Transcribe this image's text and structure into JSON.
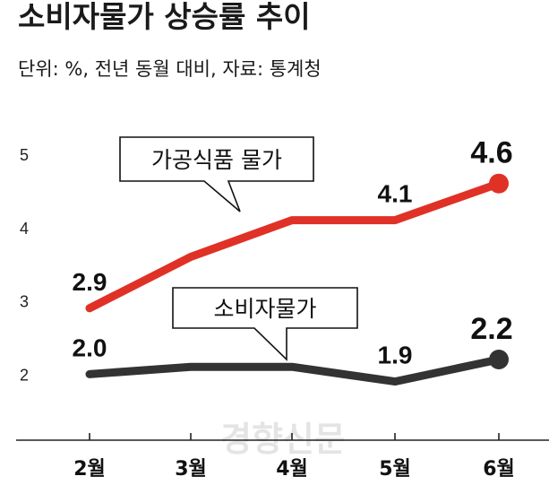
{
  "chart_data": {
    "type": "line",
    "title": "소비자물가 상승률 추이",
    "subtitle": "단위: %, 전년 동월 대비, 자료: 통계청",
    "categories": [
      "2월",
      "3월",
      "4월",
      "5월",
      "6월"
    ],
    "y_ticks": [
      "5",
      "4",
      "3",
      "2"
    ],
    "ylim": [
      1.1,
      5.55
    ],
    "grid": false,
    "series": [
      {
        "name": "가공식품 물가",
        "color": "#e03127",
        "values": [
          2.9,
          3.6,
          4.1,
          4.1,
          4.6
        ],
        "labels": [
          "2.9",
          "",
          "",
          "4.1",
          "4.6"
        ]
      },
      {
        "name": "소비자물가",
        "color": "#333333",
        "values": [
          2.0,
          2.1,
          2.1,
          1.9,
          2.2
        ],
        "labels": [
          "2.0",
          "",
          "",
          "1.9",
          "2.2"
        ]
      }
    ]
  },
  "watermark": "경향신문"
}
